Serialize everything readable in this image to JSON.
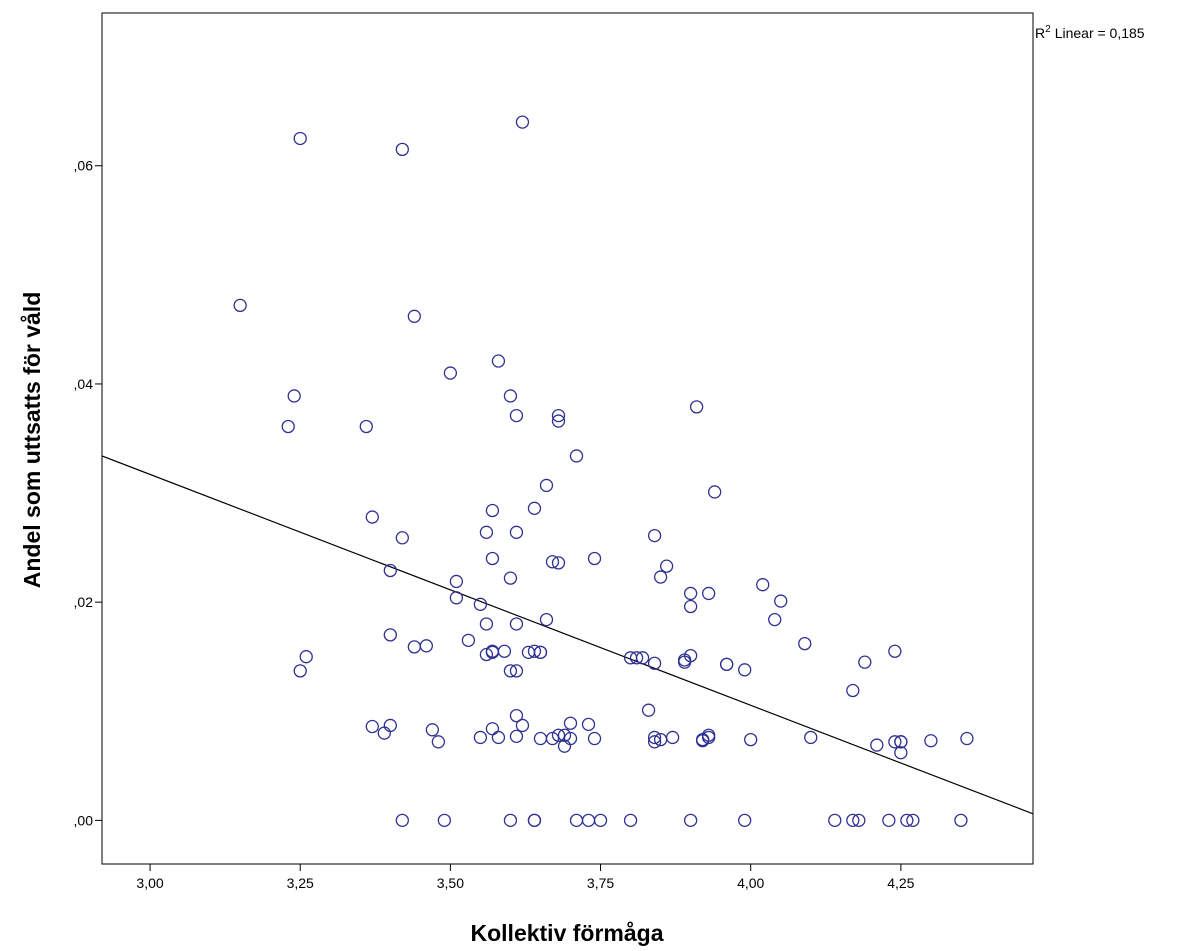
{
  "chart_data": {
    "type": "scatter",
    "xlabel": "Kollektiv förmåga",
    "ylabel": "Andel som uttsatts för våld",
    "fit_label": "Linear = 0,185",
    "fit_label_prefix": "R",
    "fit_label_sup": "2",
    "xlim": [
      2.92,
      4.47
    ],
    "ylim": [
      -0.004,
      0.074
    ],
    "x_ticks": [
      3.0,
      3.25,
      3.5,
      3.75,
      4.0,
      4.25
    ],
    "x_tick_labels": [
      "3,00",
      "3,25",
      "3,50",
      "3,75",
      "4,00",
      "4,25"
    ],
    "y_ticks": [
      0.0,
      0.02,
      0.04,
      0.06
    ],
    "y_tick_labels": [
      ",00",
      ",02",
      ",04",
      ",06"
    ],
    "grid": false,
    "marker_color": "#2E3192",
    "line_color": "#000000",
    "fit_line": {
      "x": [
        2.92,
        4.47
      ],
      "y": [
        0.0334,
        0.0006
      ]
    },
    "x": [
      3.15,
      3.25,
      3.42,
      3.62,
      3.24,
      3.23,
      3.36,
      3.44,
      3.5,
      3.58,
      3.6,
      3.61,
      3.68,
      3.68,
      3.71,
      3.91,
      3.94,
      3.37,
      3.42,
      3.4,
      3.51,
      3.51,
      3.57,
      3.56,
      3.61,
      3.64,
      3.66,
      3.68,
      3.74,
      3.6,
      3.84,
      3.85,
      3.86,
      3.57,
      3.61,
      3.55,
      3.56,
      3.66,
      3.67,
      3.4,
      3.44,
      3.46,
      3.53,
      3.56,
      3.57,
      3.57,
      3.59,
      3.6,
      3.61,
      3.63,
      3.64,
      3.65,
      3.65,
      3.8,
      3.81,
      3.82,
      3.84,
      3.89,
      3.9,
      3.9,
      3.89,
      3.96,
      3.96,
      3.99,
      3.9,
      3.93,
      4.02,
      4.05,
      4.04,
      4.09,
      4.19,
      4.24,
      4.17,
      3.26,
      3.25,
      3.37,
      3.4,
      3.39,
      3.47,
      3.48,
      3.55,
      3.57,
      3.58,
      3.61,
      3.62,
      3.61,
      3.65,
      3.67,
      3.68,
      3.69,
      3.7,
      3.69,
      3.7,
      3.73,
      3.74,
      3.83,
      3.84,
      3.85,
      3.84,
      3.87,
      3.92,
      3.93,
      3.93,
      3.92,
      4.0,
      4.1,
      4.21,
      4.24,
      4.25,
      4.25,
      4.3,
      4.36,
      4.25,
      3.42,
      3.49,
      3.6,
      3.64,
      3.64,
      3.71,
      3.73,
      3.75,
      3.8,
      3.9,
      3.99,
      4.14,
      4.18,
      4.17,
      4.23,
      4.26,
      4.27,
      4.35
    ],
    "y": [
      0.0472,
      0.0625,
      0.0615,
      0.064,
      0.0389,
      0.0361,
      0.0361,
      0.0462,
      0.041,
      0.0421,
      0.0389,
      0.0371,
      0.0371,
      0.0366,
      0.0334,
      0.0379,
      0.0301,
      0.0278,
      0.0259,
      0.0229,
      0.0219,
      0.0204,
      0.0284,
      0.0264,
      0.0264,
      0.0286,
      0.0307,
      0.0236,
      0.024,
      0.0222,
      0.0261,
      0.0223,
      0.0233,
      0.024,
      0.018,
      0.0198,
      0.018,
      0.0184,
      0.0237,
      0.017,
      0.0159,
      0.016,
      0.0165,
      0.0152,
      0.0155,
      0.0154,
      0.0155,
      0.0137,
      0.0137,
      0.0154,
      0.0155,
      0.0154,
      0.0154,
      0.0149,
      0.0149,
      0.0149,
      0.0144,
      0.0145,
      0.0151,
      0.0196,
      0.0147,
      0.0143,
      0.0143,
      0.0138,
      0.0208,
      0.0208,
      0.0216,
      0.0201,
      0.0184,
      0.0162,
      0.0145,
      0.0155,
      0.0119,
      0.015,
      0.0137,
      0.0086,
      0.0087,
      0.008,
      0.0083,
      0.0072,
      0.0076,
      0.0084,
      0.0076,
      0.0096,
      0.0087,
      0.0077,
      0.0075,
      0.0075,
      0.0078,
      0.0078,
      0.0089,
      0.0068,
      0.0075,
      0.0088,
      0.0075,
      0.0101,
      0.0072,
      0.0074,
      0.0076,
      0.0076,
      0.0074,
      0.0076,
      0.0078,
      0.0073,
      0.0074,
      0.0076,
      0.0069,
      0.0072,
      0.0072,
      0.0062,
      0.0073,
      0.0075,
      0.0072,
      0.0,
      0.0,
      0.0,
      0.0,
      0.0,
      0.0,
      0.0,
      0.0,
      0.0,
      0.0,
      0.0,
      0.0,
      0.0,
      0.0,
      0.0,
      0.0,
      0.0,
      0.0
    ]
  }
}
